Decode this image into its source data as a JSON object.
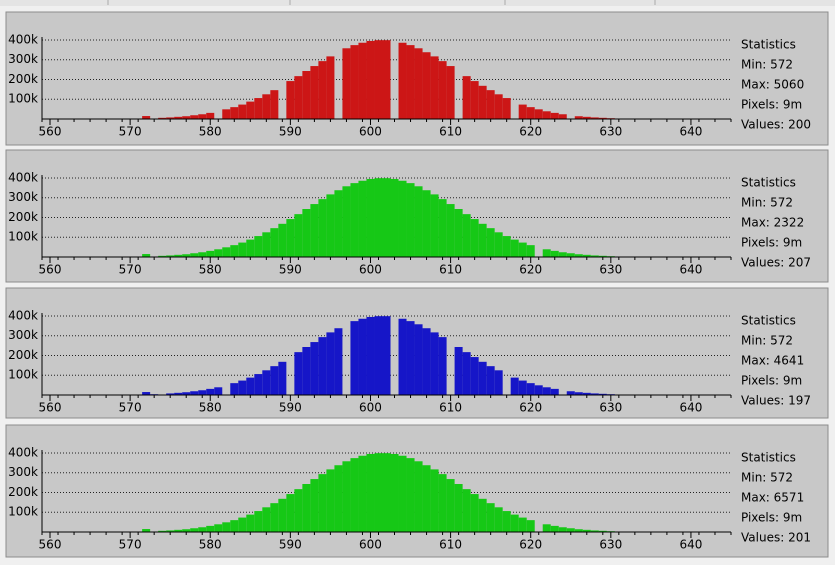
{
  "chart_data": [
    {
      "type": "bar",
      "color": "#cc1616",
      "x": [
        572,
        574,
        575,
        576,
        577,
        578,
        579,
        580,
        582,
        583,
        584,
        585,
        586,
        587,
        588,
        590,
        591,
        592,
        593,
        594,
        595,
        597,
        598,
        599,
        600,
        601,
        602,
        604,
        605,
        606,
        607,
        608,
        609,
        610,
        612,
        613,
        614,
        615,
        616,
        617,
        619,
        620,
        621,
        622,
        623,
        624,
        626,
        627,
        628,
        629,
        630,
        631
      ],
      "values": [
        15000,
        6000,
        8000,
        11000,
        14000,
        19000,
        24000,
        31000,
        49000,
        60000,
        73000,
        88000,
        106000,
        125000,
        146000,
        192000,
        217000,
        243000,
        268000,
        293000,
        317000,
        358000,
        374000,
        386000,
        395000,
        399000,
        399000,
        386000,
        374000,
        358000,
        338000,
        317000,
        293000,
        268000,
        217000,
        192000,
        168000,
        146000,
        125000,
        106000,
        73000,
        60000,
        49000,
        39000,
        31000,
        24000,
        14000,
        11000,
        8000,
        6000,
        4000,
        2000
      ],
      "xlim": [
        559,
        645
      ],
      "xticks": [
        560,
        570,
        580,
        590,
        600,
        610,
        620,
        630,
        640
      ],
      "ylim": [
        0,
        405000
      ],
      "yticks": [
        {
          "value": 100000,
          "label": "100k"
        },
        {
          "value": 200000,
          "label": "200k"
        },
        {
          "value": 300000,
          "label": "300k"
        },
        {
          "value": 400000,
          "label": "400k"
        }
      ],
      "grid": true,
      "annotations": [
        "Statistics",
        "Min: 572",
        "Max: 5060",
        "Pixels: 9m",
        "Values: 200"
      ]
    },
    {
      "type": "bar",
      "color": "#16c816",
      "x": [
        572,
        574,
        575,
        576,
        577,
        578,
        579,
        580,
        581,
        582,
        583,
        584,
        585,
        586,
        587,
        588,
        589,
        590,
        591,
        592,
        593,
        594,
        595,
        596,
        597,
        598,
        599,
        600,
        601,
        602,
        603,
        604,
        605,
        606,
        607,
        608,
        609,
        610,
        611,
        612,
        613,
        614,
        615,
        616,
        617,
        618,
        619,
        620,
        622,
        623,
        624,
        625,
        626,
        627,
        628,
        629,
        630,
        631
      ],
      "values": [
        15000,
        6000,
        8000,
        11000,
        14000,
        19000,
        24000,
        31000,
        39000,
        49000,
        60000,
        73000,
        88000,
        106000,
        125000,
        146000,
        168000,
        192000,
        217000,
        243000,
        268000,
        293000,
        317000,
        338000,
        358000,
        374000,
        386000,
        395000,
        399000,
        399000,
        395000,
        386000,
        374000,
        358000,
        338000,
        317000,
        293000,
        268000,
        243000,
        217000,
        192000,
        168000,
        146000,
        125000,
        106000,
        88000,
        73000,
        60000,
        39000,
        31000,
        24000,
        19000,
        14000,
        11000,
        8000,
        6000,
        4000,
        2000
      ],
      "xlim": [
        559,
        645
      ],
      "xticks": [
        560,
        570,
        580,
        590,
        600,
        610,
        620,
        630,
        640
      ],
      "ylim": [
        0,
        405000
      ],
      "yticks": [
        {
          "value": 100000,
          "label": "100k"
        },
        {
          "value": 200000,
          "label": "200k"
        },
        {
          "value": 300000,
          "label": "300k"
        },
        {
          "value": 400000,
          "label": "400k"
        }
      ],
      "grid": true,
      "annotations": [
        "Statistics",
        "Min: 572",
        "Max: 2322",
        "Pixels: 9m",
        "Values: 207"
      ]
    },
    {
      "type": "bar",
      "color": "#1616c8",
      "x": [
        572,
        573,
        575,
        576,
        577,
        578,
        579,
        580,
        581,
        583,
        584,
        585,
        586,
        587,
        588,
        589,
        591,
        592,
        593,
        594,
        595,
        596,
        598,
        599,
        600,
        601,
        602,
        604,
        605,
        606,
        607,
        608,
        609,
        611,
        612,
        613,
        614,
        615,
        616,
        618,
        619,
        620,
        621,
        622,
        623,
        625,
        626,
        627,
        628,
        629,
        630,
        631
      ],
      "values": [
        15000,
        4000,
        8000,
        11000,
        14000,
        19000,
        24000,
        31000,
        39000,
        60000,
        73000,
        88000,
        106000,
        125000,
        146000,
        168000,
        217000,
        243000,
        268000,
        293000,
        317000,
        338000,
        374000,
        386000,
        395000,
        399000,
        399000,
        386000,
        374000,
        358000,
        338000,
        317000,
        293000,
        243000,
        217000,
        192000,
        168000,
        146000,
        125000,
        88000,
        73000,
        60000,
        49000,
        39000,
        31000,
        19000,
        14000,
        11000,
        8000,
        6000,
        4000,
        2000
      ],
      "xlim": [
        559,
        645
      ],
      "xticks": [
        560,
        570,
        580,
        590,
        600,
        610,
        620,
        630,
        640
      ],
      "ylim": [
        0,
        405000
      ],
      "yticks": [
        {
          "value": 100000,
          "label": "100k"
        },
        {
          "value": 200000,
          "label": "200k"
        },
        {
          "value": 300000,
          "label": "300k"
        },
        {
          "value": 400000,
          "label": "400k"
        }
      ],
      "grid": true,
      "annotations": [
        "Statistics",
        "Min: 572",
        "Max: 4641",
        "Pixels: 9m",
        "Values: 197"
      ]
    },
    {
      "type": "bar",
      "color": "#16c816",
      "x": [
        572,
        574,
        575,
        576,
        577,
        578,
        579,
        580,
        581,
        582,
        583,
        584,
        585,
        586,
        587,
        588,
        589,
        590,
        591,
        592,
        593,
        594,
        595,
        596,
        597,
        598,
        599,
        600,
        601,
        602,
        603,
        604,
        605,
        606,
        607,
        608,
        609,
        610,
        611,
        612,
        613,
        614,
        615,
        616,
        617,
        618,
        619,
        620,
        622,
        623,
        624,
        625,
        626,
        627,
        628,
        629,
        630,
        631
      ],
      "values": [
        15000,
        6000,
        8000,
        11000,
        14000,
        19000,
        24000,
        31000,
        39000,
        49000,
        60000,
        73000,
        88000,
        106000,
        125000,
        146000,
        168000,
        192000,
        217000,
        243000,
        268000,
        293000,
        317000,
        338000,
        358000,
        374000,
        386000,
        395000,
        399000,
        399000,
        395000,
        386000,
        374000,
        358000,
        338000,
        317000,
        293000,
        268000,
        243000,
        217000,
        192000,
        168000,
        146000,
        125000,
        106000,
        88000,
        73000,
        60000,
        39000,
        31000,
        24000,
        19000,
        14000,
        11000,
        8000,
        6000,
        4000,
        2000
      ],
      "xlim": [
        559,
        645
      ],
      "xticks": [
        560,
        570,
        580,
        590,
        600,
        610,
        620,
        630,
        640
      ],
      "ylim": [
        0,
        405000
      ],
      "yticks": [
        {
          "value": 100000,
          "label": "100k"
        },
        {
          "value": 200000,
          "label": "200k"
        },
        {
          "value": 300000,
          "label": "300k"
        },
        {
          "value": 400000,
          "label": "400k"
        }
      ],
      "grid": true,
      "annotations": [
        "Statistics",
        "Min: 572",
        "Max: 6571",
        "Pixels: 9m",
        "Values: 201"
      ]
    }
  ]
}
